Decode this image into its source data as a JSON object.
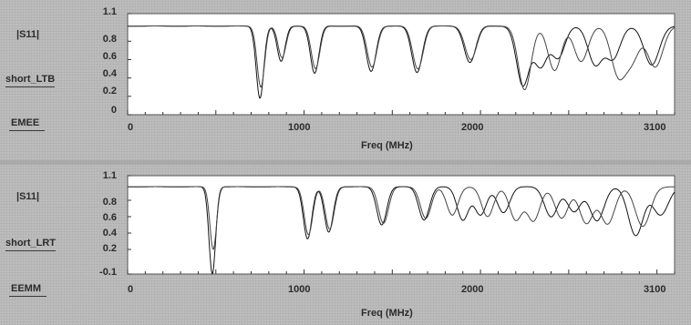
{
  "chart_data": [
    {
      "type": "line",
      "ylabel": "|S11|",
      "trace_label": "short_LTB",
      "mode_label": "EMEE",
      "xlabel": "Freq (MHz)",
      "xlim": [
        0,
        3100
      ],
      "ylim": [
        0,
        1.1
      ],
      "x_ticks": [
        "0",
        "1000",
        "2000",
        "3100"
      ],
      "y_ticks": [
        "1.1",
        "0.8",
        "0.6",
        "0.4",
        "0.2",
        "0"
      ],
      "series": [
        {
          "color": "#111111",
          "dips": [
            [
              750,
              0.18
            ],
            [
              870,
              0.58
            ],
            [
              1060,
              0.45
            ],
            [
              1380,
              0.47
            ],
            [
              1640,
              0.46
            ],
            [
              1940,
              0.57
            ],
            [
              2240,
              0.32
            ],
            [
              2340,
              0.53
            ],
            [
              2440,
              0.62
            ],
            [
              2650,
              0.55
            ],
            [
              2750,
              0.61
            ],
            [
              2970,
              0.54
            ]
          ]
        },
        {
          "color": "#444444",
          "dips": [
            [
              755,
              0.3
            ],
            [
              875,
              0.62
            ],
            [
              1065,
              0.5
            ],
            [
              1385,
              0.52
            ],
            [
              1645,
              0.5
            ],
            [
              1945,
              0.6
            ],
            [
              2250,
              0.27
            ],
            [
              2420,
              0.48
            ],
            [
              2570,
              0.58
            ],
            [
              2780,
              0.45
            ],
            [
              2860,
              0.62
            ],
            [
              2990,
              0.52
            ]
          ]
        }
      ]
    },
    {
      "type": "line",
      "ylabel": "|S11|",
      "trace_label": "short_LRT",
      "mode_label": "EEMM",
      "xlabel": "Freq (MHz)",
      "xlim": [
        0,
        3100
      ],
      "ylim": [
        -0.1,
        1.1
      ],
      "x_ticks": [
        "0",
        "1000",
        "2000",
        "3100"
      ],
      "y_ticks": [
        "1.1",
        "0.8",
        "0.6",
        "0.4",
        "0.2",
        "-0.1"
      ],
      "series": [
        {
          "color": "#111111",
          "dips": [
            [
              480,
              -0.1
            ],
            [
              1020,
              0.33
            ],
            [
              1140,
              0.41
            ],
            [
              1440,
              0.5
            ],
            [
              1680,
              0.56
            ],
            [
              1900,
              0.56
            ],
            [
              2000,
              0.62
            ],
            [
              2130,
              0.65
            ],
            [
              2400,
              0.6
            ],
            [
              2530,
              0.66
            ],
            [
              2660,
              0.55
            ],
            [
              2880,
              0.37
            ],
            [
              3020,
              0.62
            ]
          ]
        },
        {
          "color": "#444444",
          "dips": [
            [
              485,
              0.2
            ],
            [
              1025,
              0.38
            ],
            [
              1145,
              0.45
            ],
            [
              1450,
              0.52
            ],
            [
              1690,
              0.58
            ],
            [
              1840,
              0.62
            ],
            [
              2040,
              0.6
            ],
            [
              2200,
              0.56
            ],
            [
              2300,
              0.55
            ],
            [
              2460,
              0.58
            ],
            [
              2600,
              0.52
            ],
            [
              2720,
              0.51
            ],
            [
              2920,
              0.48
            ]
          ]
        }
      ]
    }
  ]
}
